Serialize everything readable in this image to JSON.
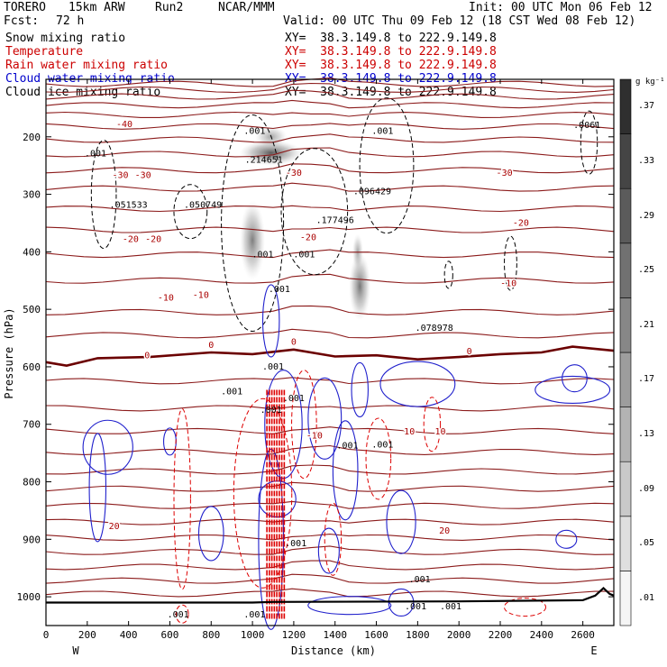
{
  "header": {
    "model": "TORERO",
    "resolution": "15km ARW",
    "run": "Run2",
    "institution": "NCAR/MMM",
    "init": "Init: 00 UTC Mon 06 Feb 12",
    "fcst_label": "Fcst:",
    "fcst_value": "72 h",
    "valid": "Valid: 00 UTC Thu 09 Feb 12 (18 CST Wed 08 Feb 12)"
  },
  "fields": [
    {
      "name": "Snow mixing ratio",
      "xy": "XY=  38.3.149.8 to 222.9.149.8",
      "color": "#000000"
    },
    {
      "name": "Temperature",
      "xy": "XY=  38.3.149.8 to 222.9.149.8",
      "color": "#cc0000"
    },
    {
      "name": "Rain water mixing ratio",
      "xy": "XY=  38.3.149.8 to 222.9.149.8",
      "color": "#cc0000"
    },
    {
      "name": "Cloud water mixing ratio",
      "xy": "XY=  38.3.149.8 to 222.9.149.8",
      "color": "#0000cc"
    },
    {
      "name": "Cloud ice mixing ratio",
      "xy": "XY=  38.3.149.8 to 222.9.149.8",
      "color": "#000000"
    }
  ],
  "colorbar": {
    "unit": "g kg⁻¹",
    "labels": [
      ".01",
      ".05",
      ".09",
      ".13",
      ".17",
      ".21",
      ".25",
      ".29",
      ".33",
      ".37"
    ]
  },
  "chart_data": {
    "type": "heatmap",
    "xlabel": "Distance (km)",
    "ylabel": "Pressure (hPa)",
    "xlim": [
      0,
      2750
    ],
    "ylim": [
      1050,
      100
    ],
    "x_ticks": [
      "0",
      "200",
      "400",
      "600",
      "800",
      "1000",
      "1200",
      "1400",
      "1600",
      "1800",
      "2000",
      "2200",
      "2400",
      "2600"
    ],
    "y_ticks": [
      "200",
      "300",
      "400",
      "500",
      "600",
      "700",
      "800",
      "900",
      "1000"
    ],
    "x_end_labels": {
      "left": "W",
      "right": "E"
    },
    "temperature_labels": [
      {
        "text": "-40",
        "x": 380,
        "p": 183
      },
      {
        "text": "-30",
        "x": 360,
        "p": 272
      },
      {
        "text": "-30",
        "x": 470,
        "p": 272
      },
      {
        "text": "-30",
        "x": 1200,
        "p": 268
      },
      {
        "text": "-30",
        "x": 2220,
        "p": 268
      },
      {
        "text": "-20",
        "x": 410,
        "p": 383
      },
      {
        "text": "-20",
        "x": 520,
        "p": 383
      },
      {
        "text": "-20",
        "x": 1270,
        "p": 380
      },
      {
        "text": "-20",
        "x": 2300,
        "p": 355
      },
      {
        "text": "-10",
        "x": 580,
        "p": 485
      },
      {
        "text": "-10",
        "x": 750,
        "p": 480
      },
      {
        "text": "-10",
        "x": 2240,
        "p": 460
      },
      {
        "text": "-10",
        "x": 1300,
        "p": 725
      },
      {
        "text": "0",
        "x": 1200,
        "p": 562
      },
      {
        "text": "0",
        "x": 800,
        "p": 567
      },
      {
        "text": "0",
        "x": 490,
        "p": 585
      },
      {
        "text": "0",
        "x": 2050,
        "p": 578
      },
      {
        "text": "10",
        "x": 1760,
        "p": 718
      },
      {
        "text": "10",
        "x": 1910,
        "p": 718
      },
      {
        "text": "20",
        "x": 330,
        "p": 882
      },
      {
        "text": "20",
        "x": 1930,
        "p": 890
      }
    ],
    "max_labels": [
      {
        "text": ".001",
        "x": 1010,
        "p": 195
      },
      {
        "text": ".001",
        "x": 1630,
        "p": 195
      },
      {
        "text": ".001",
        "x": 240,
        "p": 234
      },
      {
        "text": ".214651",
        "x": 1055,
        "p": 245
      },
      {
        "text": ".096429",
        "x": 1580,
        "p": 300
      },
      {
        "text": ".051533",
        "x": 400,
        "p": 323
      },
      {
        "text": ".050749",
        "x": 760,
        "p": 323
      },
      {
        "text": ".177496",
        "x": 1400,
        "p": 350
      },
      {
        "text": ".001",
        "x": 1050,
        "p": 410
      },
      {
        "text": ".001",
        "x": 1250,
        "p": 410
      },
      {
        "text": ".001",
        "x": 1130,
        "p": 470
      },
      {
        "text": ".078978",
        "x": 1880,
        "p": 537
      },
      {
        "text": ".0061",
        "x": 2620,
        "p": 185
      },
      {
        "text": ".001",
        "x": 1100,
        "p": 605
      },
      {
        "text": ".001",
        "x": 900,
        "p": 648
      },
      {
        "text": ".001",
        "x": 1200,
        "p": 660
      },
      {
        "text": ".001",
        "x": 1090,
        "p": 680
      },
      {
        "text": ".001",
        "x": 1460,
        "p": 742
      },
      {
        "text": ".001",
        "x": 1630,
        "p": 740
      },
      {
        "text": ".001",
        "x": 1210,
        "p": 912
      },
      {
        "text": ".001",
        "x": 1810,
        "p": 975
      },
      {
        "text": ".001",
        "x": 1790,
        "p": 1022
      },
      {
        "text": ".001",
        "x": 1960,
        "p": 1022
      },
      {
        "text": ".001",
        "x": 640,
        "p": 1036
      },
      {
        "text": ".001",
        "x": 1010,
        "p": 1036
      }
    ]
  }
}
